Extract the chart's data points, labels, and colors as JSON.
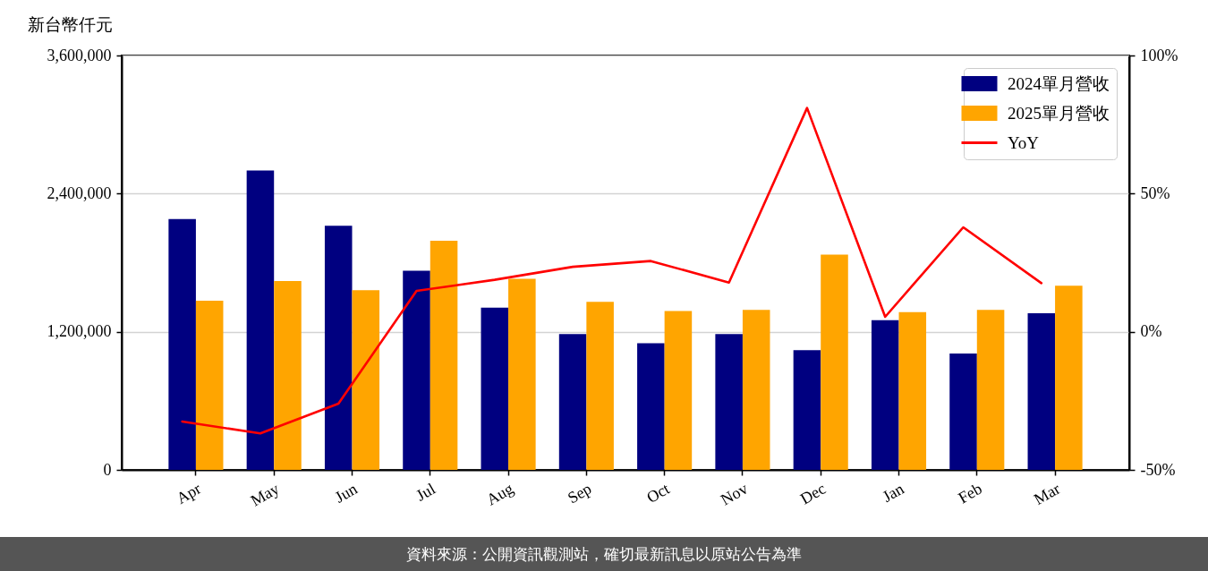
{
  "chart_data": {
    "type": "bar",
    "ylabel": "新台幣仟元",
    "categories": [
      "Apr",
      "May",
      "Jun",
      "Jul",
      "Aug",
      "Sep",
      "Oct",
      "Nov",
      "Dec",
      "Jan",
      "Feb",
      "Mar"
    ],
    "series": [
      {
        "name": "2024單月營收",
        "color": "#000080",
        "values": [
          2180000,
          2600000,
          2120000,
          1730000,
          1410000,
          1180000,
          1100000,
          1180000,
          1040000,
          1300000,
          1010000,
          1360000
        ]
      },
      {
        "name": "2025單月營收",
        "color": "#ffa500",
        "values": [
          1470000,
          1640000,
          1560000,
          1990000,
          1660000,
          1460000,
          1380000,
          1390000,
          1870000,
          1370000,
          1390000,
          1600000
        ]
      },
      {
        "name": "YoY",
        "type": "line",
        "axis": "y2",
        "color": "#ff0000",
        "values": [
          -32.5,
          -36.8,
          -26,
          14.8,
          18.8,
          23.5,
          25.6,
          17.8,
          81,
          5.4,
          37.8,
          17.6
        ]
      }
    ],
    "ylim": [
      0,
      3600000
    ],
    "yticks": [
      0,
      {
        "value": 1200000,
        "label": "1,200,000"
      },
      {
        "value": 2400000,
        "label": "2,400,000"
      },
      {
        "value": 3600000,
        "label": "3,600,000"
      }
    ],
    "y2lim": [
      -50,
      100
    ],
    "y2ticks": [
      {
        "value": -50,
        "label": "-50%"
      },
      {
        "value": 0,
        "label": "0%"
      },
      {
        "value": 50,
        "label": "50%"
      },
      {
        "value": 100,
        "label": "100%"
      }
    ],
    "grid": "y",
    "legend": "top right",
    "annotations": [
      "資料來源：公開資訊觀測站，確切最新訊息以原站公告為準"
    ]
  }
}
